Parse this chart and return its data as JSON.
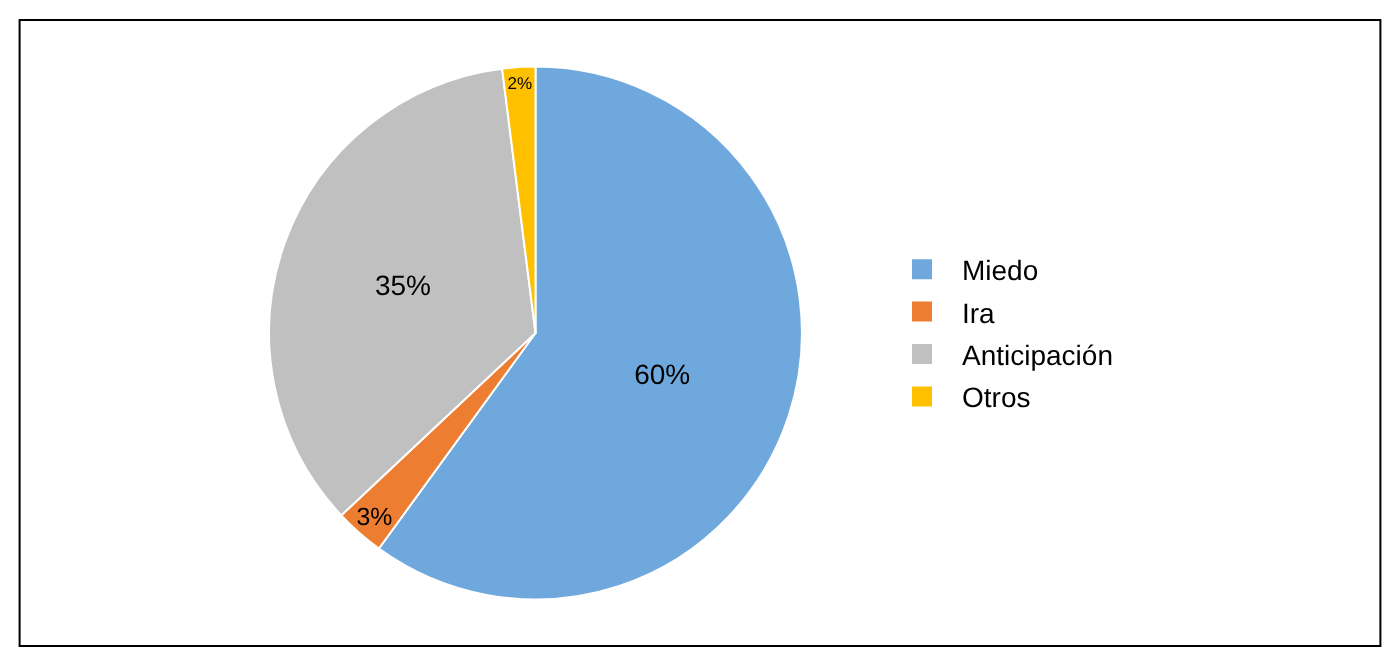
{
  "chart_data": {
    "type": "pie",
    "categories": [
      "Miedo",
      "Ira",
      "Anticipación",
      "Otros"
    ],
    "values": [
      60,
      3,
      35,
      2
    ],
    "value_labels": [
      "60%",
      "3%",
      "35%",
      "2%"
    ],
    "colors": [
      "#6fa8dc",
      "#ed7d31",
      "#c0c0c0",
      "#ffc000"
    ],
    "legend": "right"
  }
}
